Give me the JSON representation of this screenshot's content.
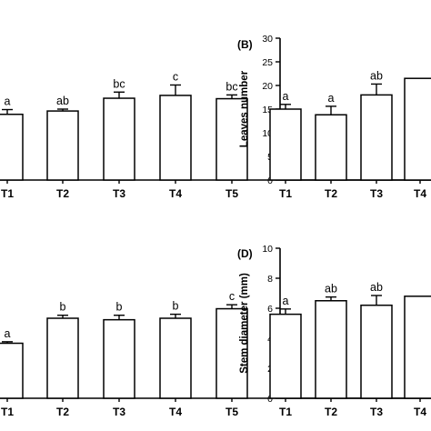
{
  "chart_data": [
    {
      "panel": "",
      "type": "bar",
      "ylabel": "",
      "ylim": [
        0,
        30
      ],
      "yticks": [],
      "categories": [
        "T1",
        "T2",
        "T3",
        "T4",
        "T5"
      ],
      "values": [
        13.9,
        14.6,
        17.3,
        17.9,
        17.2
      ],
      "errors": [
        1.0,
        0.4,
        1.3,
        2.2,
        0.8
      ],
      "letters": [
        "a",
        "ab",
        "bc",
        "c",
        "bc"
      ]
    },
    {
      "panel": "(B)",
      "type": "bar",
      "ylabel": "Leaves number",
      "ylim": [
        0,
        30
      ],
      "yticks": [
        0,
        5,
        10,
        15,
        20,
        25,
        30
      ],
      "categories": [
        "T1",
        "T2",
        "T3",
        "T4"
      ],
      "values": [
        15.0,
        13.8,
        18.0,
        21.5
      ],
      "errors": [
        1.0,
        1.8,
        2.3,
        0
      ],
      "letters": [
        "a",
        "a",
        "ab",
        ""
      ]
    },
    {
      "panel": "",
      "type": "bar",
      "ylabel": "",
      "ylim": [
        0,
        30
      ],
      "yticks": [],
      "categories": [
        "T1",
        "T2",
        "T3",
        "T4",
        "T5"
      ],
      "values": [
        11.0,
        16.0,
        15.7,
        16.0,
        17.9
      ],
      "errors": [
        0.3,
        0.6,
        0.9,
        0.8,
        0.8
      ],
      "letters": [
        "a",
        "b",
        "b",
        "b",
        "c"
      ]
    },
    {
      "panel": "(D)",
      "type": "bar",
      "ylabel": "Stem diameter (mm)",
      "ylim": [
        0,
        10
      ],
      "yticks": [
        0,
        2,
        4,
        6,
        8,
        10
      ],
      "categories": [
        "T1",
        "T2",
        "T3",
        "T4"
      ],
      "values": [
        5.6,
        6.5,
        6.2,
        6.8
      ],
      "errors": [
        0.35,
        0.25,
        0.65,
        0
      ],
      "letters": [
        "a",
        "ab",
        "ab",
        ""
      ]
    }
  ]
}
